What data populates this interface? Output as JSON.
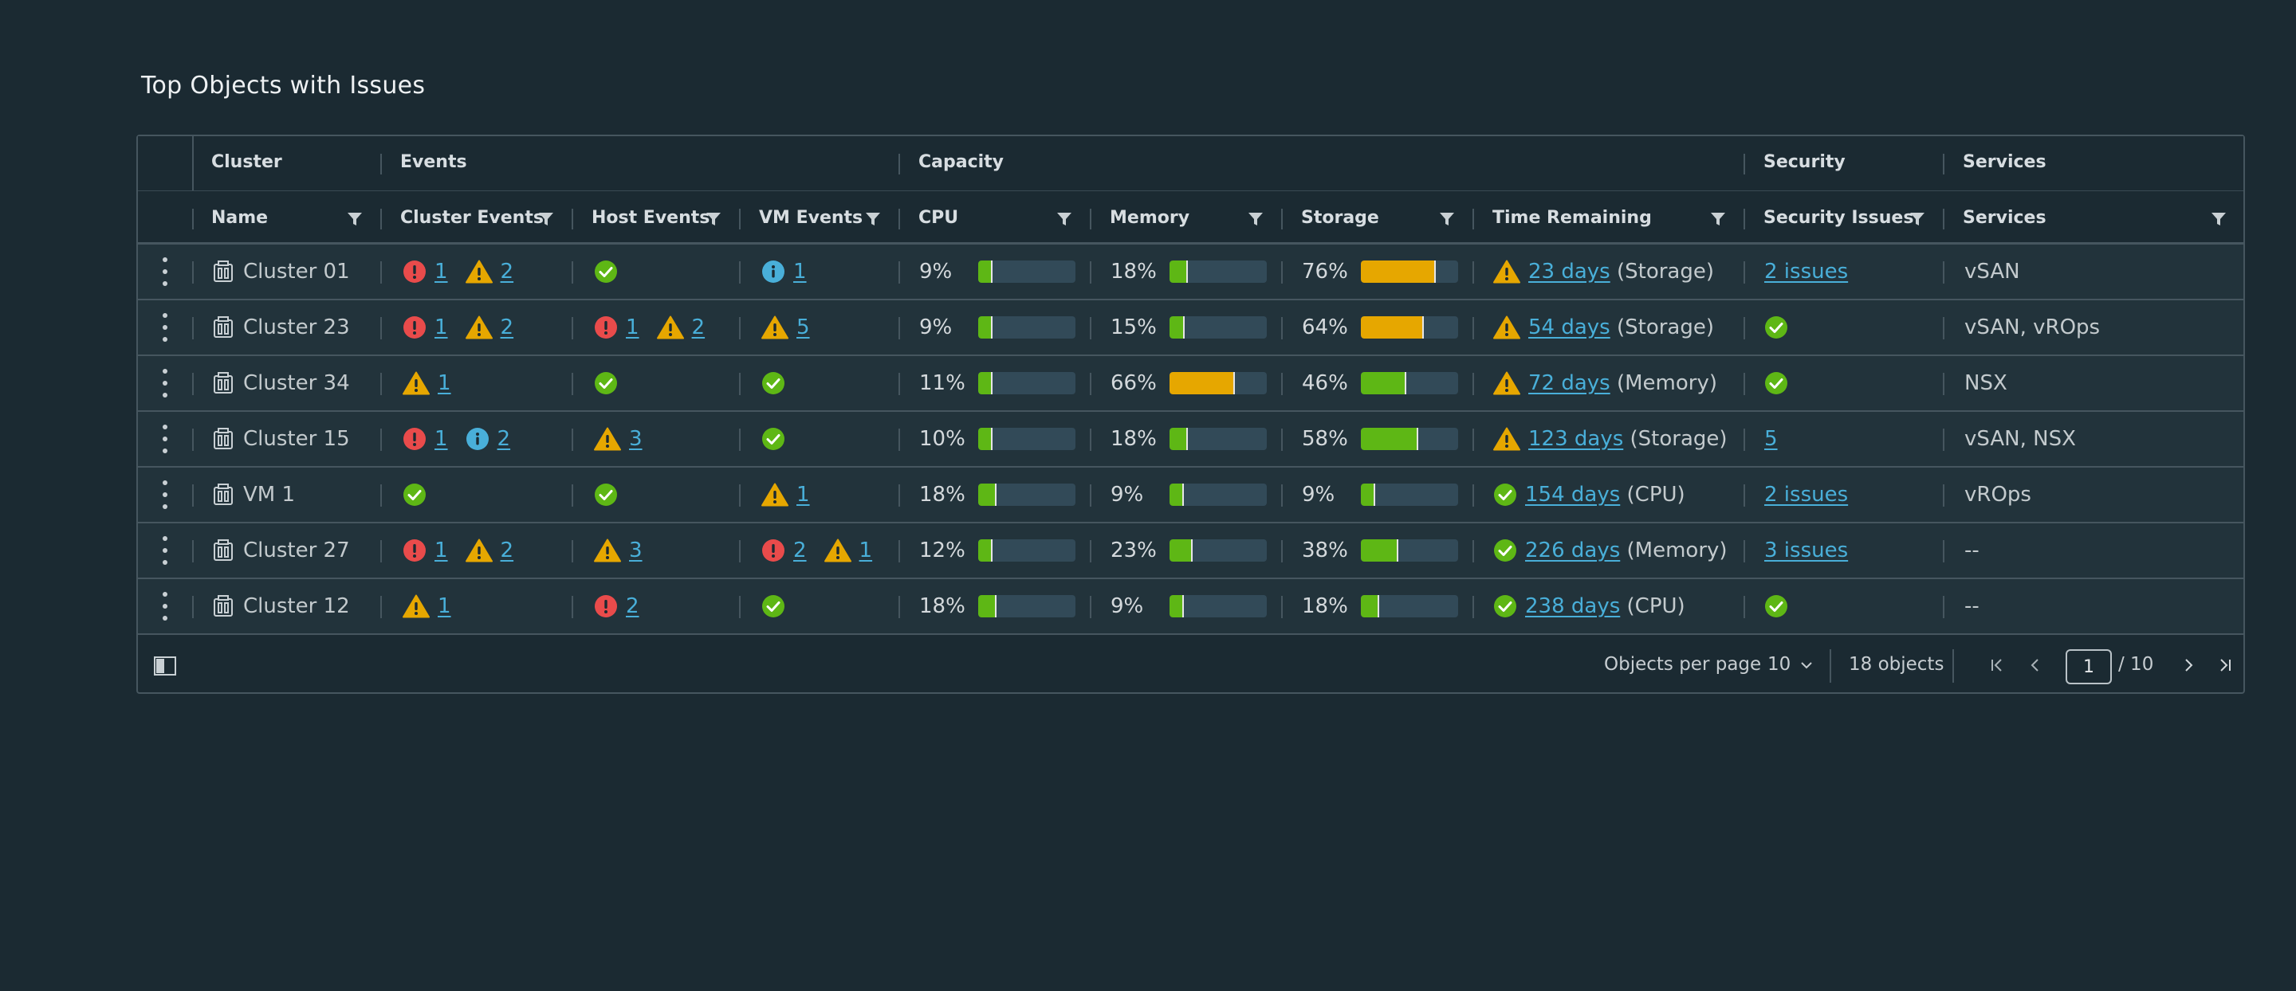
{
  "title": "Top Objects with Issues",
  "groups": {
    "cluster": "Cluster",
    "events": "Events",
    "capacity": "Capacity",
    "security": "Security",
    "services": "Services"
  },
  "columns": {
    "name": "Name",
    "cluster_events": "Cluster Events",
    "host_events": "Host Events",
    "vm_events": "VM Events",
    "cpu": "CPU",
    "memory": "Memory",
    "storage": "Storage",
    "time_remaining": "Time Remaining",
    "security_issues": "Security Issues",
    "services": "Services"
  },
  "colors": {
    "ok": "#5eb715",
    "warn": "#e6a700",
    "error": "#e94b4b",
    "info": "#49afd9",
    "bar_bg": "#324a58"
  },
  "rows": [
    {
      "name": "Cluster 01",
      "cluster_events": [
        {
          "type": "error",
          "count": "1"
        },
        {
          "type": "warn",
          "count": "2"
        }
      ],
      "host_events": [
        {
          "type": "ok",
          "count": ""
        }
      ],
      "vm_events": [
        {
          "type": "info",
          "count": "1"
        }
      ],
      "cpu": {
        "label": "9%",
        "value": 0.09,
        "level": "ok"
      },
      "memory": {
        "label": "18%",
        "value": 0.18,
        "level": "ok"
      },
      "storage": {
        "label": "76%",
        "value": 0.76,
        "level": "warn"
      },
      "time_icon": "warn",
      "time_days": "23 days",
      "time_res": "(Storage)",
      "security": {
        "type": "link",
        "text": "2 issues"
      },
      "services": "vSAN"
    },
    {
      "name": "Cluster 23",
      "cluster_events": [
        {
          "type": "error",
          "count": "1"
        },
        {
          "type": "warn",
          "count": "2"
        }
      ],
      "host_events": [
        {
          "type": "error",
          "count": "1"
        },
        {
          "type": "warn",
          "count": "2"
        }
      ],
      "vm_events": [
        {
          "type": "warn",
          "count": "5"
        }
      ],
      "cpu": {
        "label": "9%",
        "value": 0.09,
        "level": "ok"
      },
      "memory": {
        "label": "15%",
        "value": 0.15,
        "level": "ok"
      },
      "storage": {
        "label": "64%",
        "value": 0.64,
        "level": "warn"
      },
      "time_icon": "warn",
      "time_days": "54 days",
      "time_res": "(Storage)",
      "security": {
        "type": "ok",
        "text": ""
      },
      "services": "vSAN, vROps"
    },
    {
      "name": "Cluster 34",
      "cluster_events": [
        {
          "type": "warn",
          "count": "1"
        }
      ],
      "host_events": [
        {
          "type": "ok",
          "count": ""
        }
      ],
      "vm_events": [
        {
          "type": "ok",
          "count": ""
        }
      ],
      "cpu": {
        "label": "11%",
        "value": 0.11,
        "level": "ok"
      },
      "memory": {
        "label": "66%",
        "value": 0.66,
        "level": "warn"
      },
      "storage": {
        "label": "46%",
        "value": 0.46,
        "level": "ok"
      },
      "time_icon": "warn",
      "time_days": "72 days",
      "time_res": "(Memory)",
      "security": {
        "type": "ok",
        "text": ""
      },
      "services": "NSX"
    },
    {
      "name": "Cluster 15",
      "cluster_events": [
        {
          "type": "error",
          "count": "1"
        },
        {
          "type": "info",
          "count": "2"
        }
      ],
      "host_events": [
        {
          "type": "warn",
          "count": "3"
        }
      ],
      "vm_events": [
        {
          "type": "ok",
          "count": ""
        }
      ],
      "cpu": {
        "label": "10%",
        "value": 0.1,
        "level": "ok"
      },
      "memory": {
        "label": "18%",
        "value": 0.18,
        "level": "ok"
      },
      "storage": {
        "label": "58%",
        "value": 0.58,
        "level": "ok"
      },
      "time_icon": "warn",
      "time_days": "123 days",
      "time_res": "(Storage)",
      "security": {
        "type": "link",
        "text": "5"
      },
      "services": "vSAN, NSX"
    },
    {
      "name": "VM 1",
      "cluster_events": [
        {
          "type": "ok",
          "count": ""
        }
      ],
      "host_events": [
        {
          "type": "ok",
          "count": ""
        }
      ],
      "vm_events": [
        {
          "type": "warn",
          "count": "1"
        }
      ],
      "cpu": {
        "label": "18%",
        "value": 0.18,
        "level": "ok"
      },
      "memory": {
        "label": "9%",
        "value": 0.09,
        "level": "ok"
      },
      "storage": {
        "label": "9%",
        "value": 0.09,
        "level": "ok"
      },
      "time_icon": "ok",
      "time_days": "154 days",
      "time_res": "(CPU)",
      "security": {
        "type": "link",
        "text": "2 issues"
      },
      "services": "vROps"
    },
    {
      "name": "Cluster 27",
      "cluster_events": [
        {
          "type": "error",
          "count": "1"
        },
        {
          "type": "warn",
          "count": "2"
        }
      ],
      "host_events": [
        {
          "type": "warn",
          "count": "3"
        }
      ],
      "vm_events": [
        {
          "type": "error",
          "count": "2"
        },
        {
          "type": "warn",
          "count": "1"
        }
      ],
      "cpu": {
        "label": "12%",
        "value": 0.12,
        "level": "ok"
      },
      "memory": {
        "label": "23%",
        "value": 0.23,
        "level": "ok"
      },
      "storage": {
        "label": "38%",
        "value": 0.38,
        "level": "ok"
      },
      "time_icon": "ok",
      "time_days": "226 days",
      "time_res": "(Memory)",
      "security": {
        "type": "link",
        "text": "3 issues"
      },
      "services": "--"
    },
    {
      "name": "Cluster 12",
      "cluster_events": [
        {
          "type": "warn",
          "count": "1"
        }
      ],
      "host_events": [
        {
          "type": "error",
          "count": "2"
        }
      ],
      "vm_events": [
        {
          "type": "ok",
          "count": ""
        }
      ],
      "cpu": {
        "label": "18%",
        "value": 0.18,
        "level": "ok"
      },
      "memory": {
        "label": "9%",
        "value": 0.09,
        "level": "ok"
      },
      "storage": {
        "label": "18%",
        "value": 0.18,
        "level": "ok"
      },
      "time_icon": "ok",
      "time_days": "238 days",
      "time_res": "(CPU)",
      "security": {
        "type": "ok",
        "text": ""
      },
      "services": "--"
    }
  ],
  "footer": {
    "per_page_label": "Objects per page",
    "per_page_value": "10",
    "total": "18 objects",
    "current_page": "1",
    "total_pages": "/ 10"
  }
}
